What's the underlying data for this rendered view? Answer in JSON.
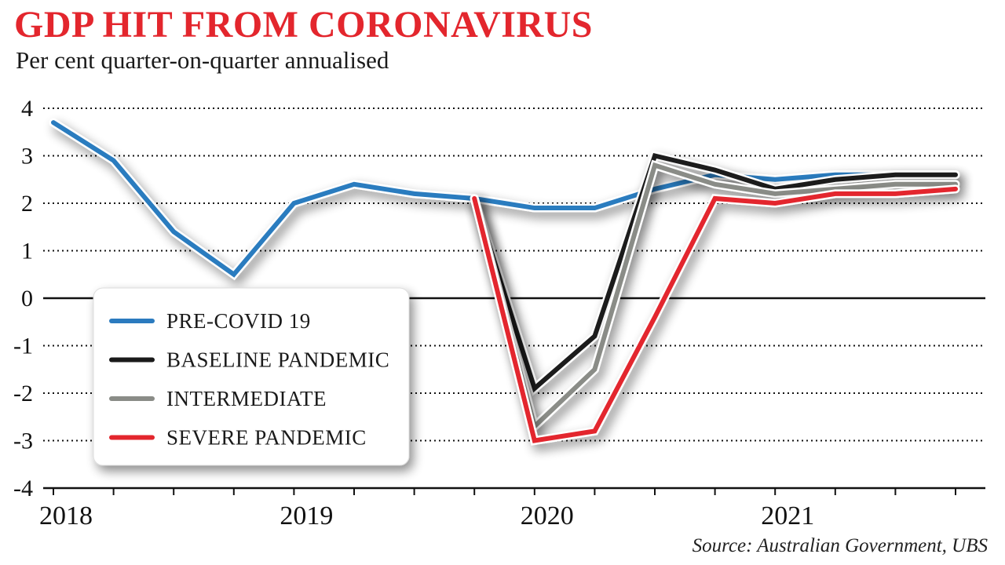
{
  "chart_data": {
    "type": "line",
    "title": "GDP HIT FROM CORONAVIRUS",
    "subtitle": "Per cent quarter-on-quarter annualised",
    "source": "Source: Australian Government, UBS",
    "ylim": [
      -4,
      4
    ],
    "yticks": [
      "4",
      "3",
      "2",
      "1",
      "0",
      "-1",
      "-2",
      "-3",
      "-4"
    ],
    "xticks": [
      "2018",
      "2019",
      "2020",
      "2021"
    ],
    "x_index_ticks": [
      0,
      4,
      8,
      12
    ],
    "grid": "dotted horizontal",
    "legend_position": "bottom-left",
    "series": [
      {
        "name": "PRE-COVID 19",
        "color": "#2b7bbf",
        "x": [
          0,
          1,
          2,
          3,
          4,
          5,
          6,
          7,
          8,
          9,
          10,
          11,
          12,
          13,
          14,
          15
        ],
        "values": [
          3.7,
          2.9,
          1.4,
          0.5,
          2.0,
          2.4,
          2.2,
          2.1,
          1.9,
          1.9,
          2.3,
          2.6,
          2.5,
          2.6,
          2.6,
          2.6
        ]
      },
      {
        "name": "BASELINE PANDEMIC",
        "color": "#1a1a1a",
        "x": [
          7,
          8,
          9,
          10,
          11,
          12,
          13,
          14,
          15
        ],
        "values": [
          2.1,
          -1.9,
          -0.8,
          3.0,
          2.7,
          2.3,
          2.5,
          2.6,
          2.6
        ]
      },
      {
        "name": "INTERMEDIATE",
        "color": "#8a8c87",
        "x": [
          7,
          8,
          9,
          10,
          11,
          12,
          13,
          14,
          15
        ],
        "values": [
          2.1,
          -2.7,
          -1.5,
          2.8,
          2.4,
          2.2,
          2.3,
          2.4,
          2.4
        ]
      },
      {
        "name": "SEVERE PANDEMIC",
        "color": "#e3262d",
        "x": [
          7,
          8,
          9,
          10,
          11,
          12,
          13,
          14,
          15
        ],
        "values": [
          2.1,
          -3.0,
          -2.8,
          -0.4,
          2.1,
          2.0,
          2.2,
          2.2,
          2.3
        ]
      }
    ]
  }
}
